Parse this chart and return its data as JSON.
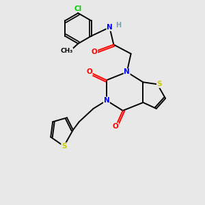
{
  "bg_color": "#e8e8e8",
  "atom_colors": {
    "C": "#000000",
    "N": "#0000ff",
    "O": "#ff0000",
    "S": "#cccc00",
    "Cl": "#00cc00",
    "H": "#7aa0aa"
  },
  "figsize": [
    3.0,
    3.0
  ],
  "dpi": 100,
  "xlim": [
    0,
    10
  ],
  "ylim": [
    0,
    10
  ]
}
